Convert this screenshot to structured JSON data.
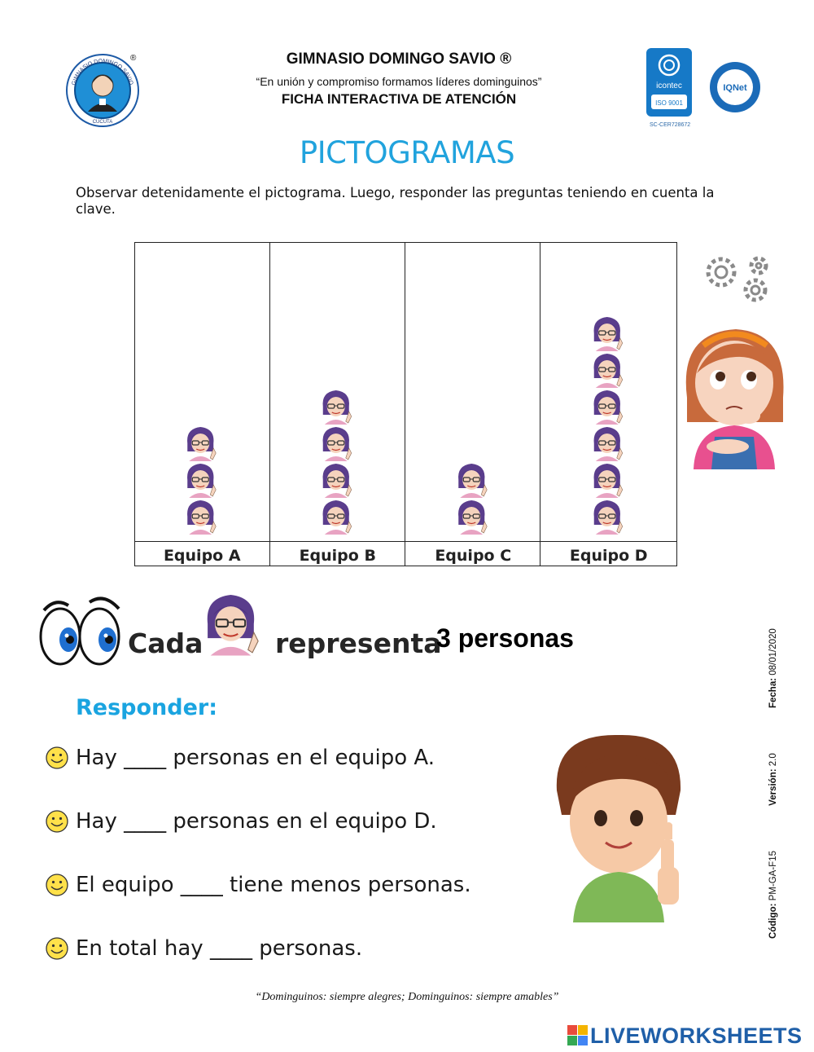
{
  "header": {
    "school_name": "GIMNASIO DOMINGO SAVIO ®",
    "motto": "“En unión y compromiso formamos líderes dominguinos”",
    "sheet_type": "FICHA INTERACTIVA DE ATENCIÓN",
    "logo_text_top": "GIMNASIO DOMINGO SAVIO",
    "logo_text_bottom": "CUCUTA",
    "registered_mark": "®",
    "icontec_label": "icontec",
    "icontec_iso": "ISO 9001",
    "iqnet_label": "IQNet",
    "cert_code": "SC-CER728672"
  },
  "title": "PICTOGRAMAS",
  "instructions": "Observar detenidamente el pictograma. Luego, responder las preguntas teniendo en cuenta la clave.",
  "chart_data": {
    "type": "bar",
    "categories": [
      "Equipo A",
      "Equipo B",
      "Equipo C",
      "Equipo D"
    ],
    "values": [
      3,
      4,
      2,
      6
    ],
    "xlabel": "",
    "ylabel": "",
    "ylim": [
      0,
      8
    ],
    "grid": false
  },
  "key": {
    "word_each": "Cada",
    "word_represents": "representa",
    "value": "3 personas"
  },
  "doc_meta": {
    "code_label": "Código:",
    "code_value": "PM-GA-F15",
    "version_label": "Versión:",
    "version_value": "2.0",
    "date_label": "Fecha:",
    "date_value": "08/01/2020"
  },
  "questions": {
    "label": "Responder:",
    "items": [
      "Hay ____ personas en el equipo A.",
      "Hay ____ personas en el equipo D.",
      "El equipo ____ tiene menos personas.",
      "En total hay ____ personas."
    ]
  },
  "footer": {
    "motto": "“Dominguinos: siempre alegres; Dominguinos: siempre amables”",
    "brand": "LIVEWORKSHEETS"
  },
  "colors": {
    "title": "#21a3dd",
    "responder": "#1aa4e0",
    "brand": "#1f5fa8",
    "icon_hair": "#5a3d8c",
    "smile_face": "#ffe14a"
  },
  "icons": {
    "pictogram_symbol": "girl-avatar-icon",
    "bullet": "smiley-icon"
  }
}
